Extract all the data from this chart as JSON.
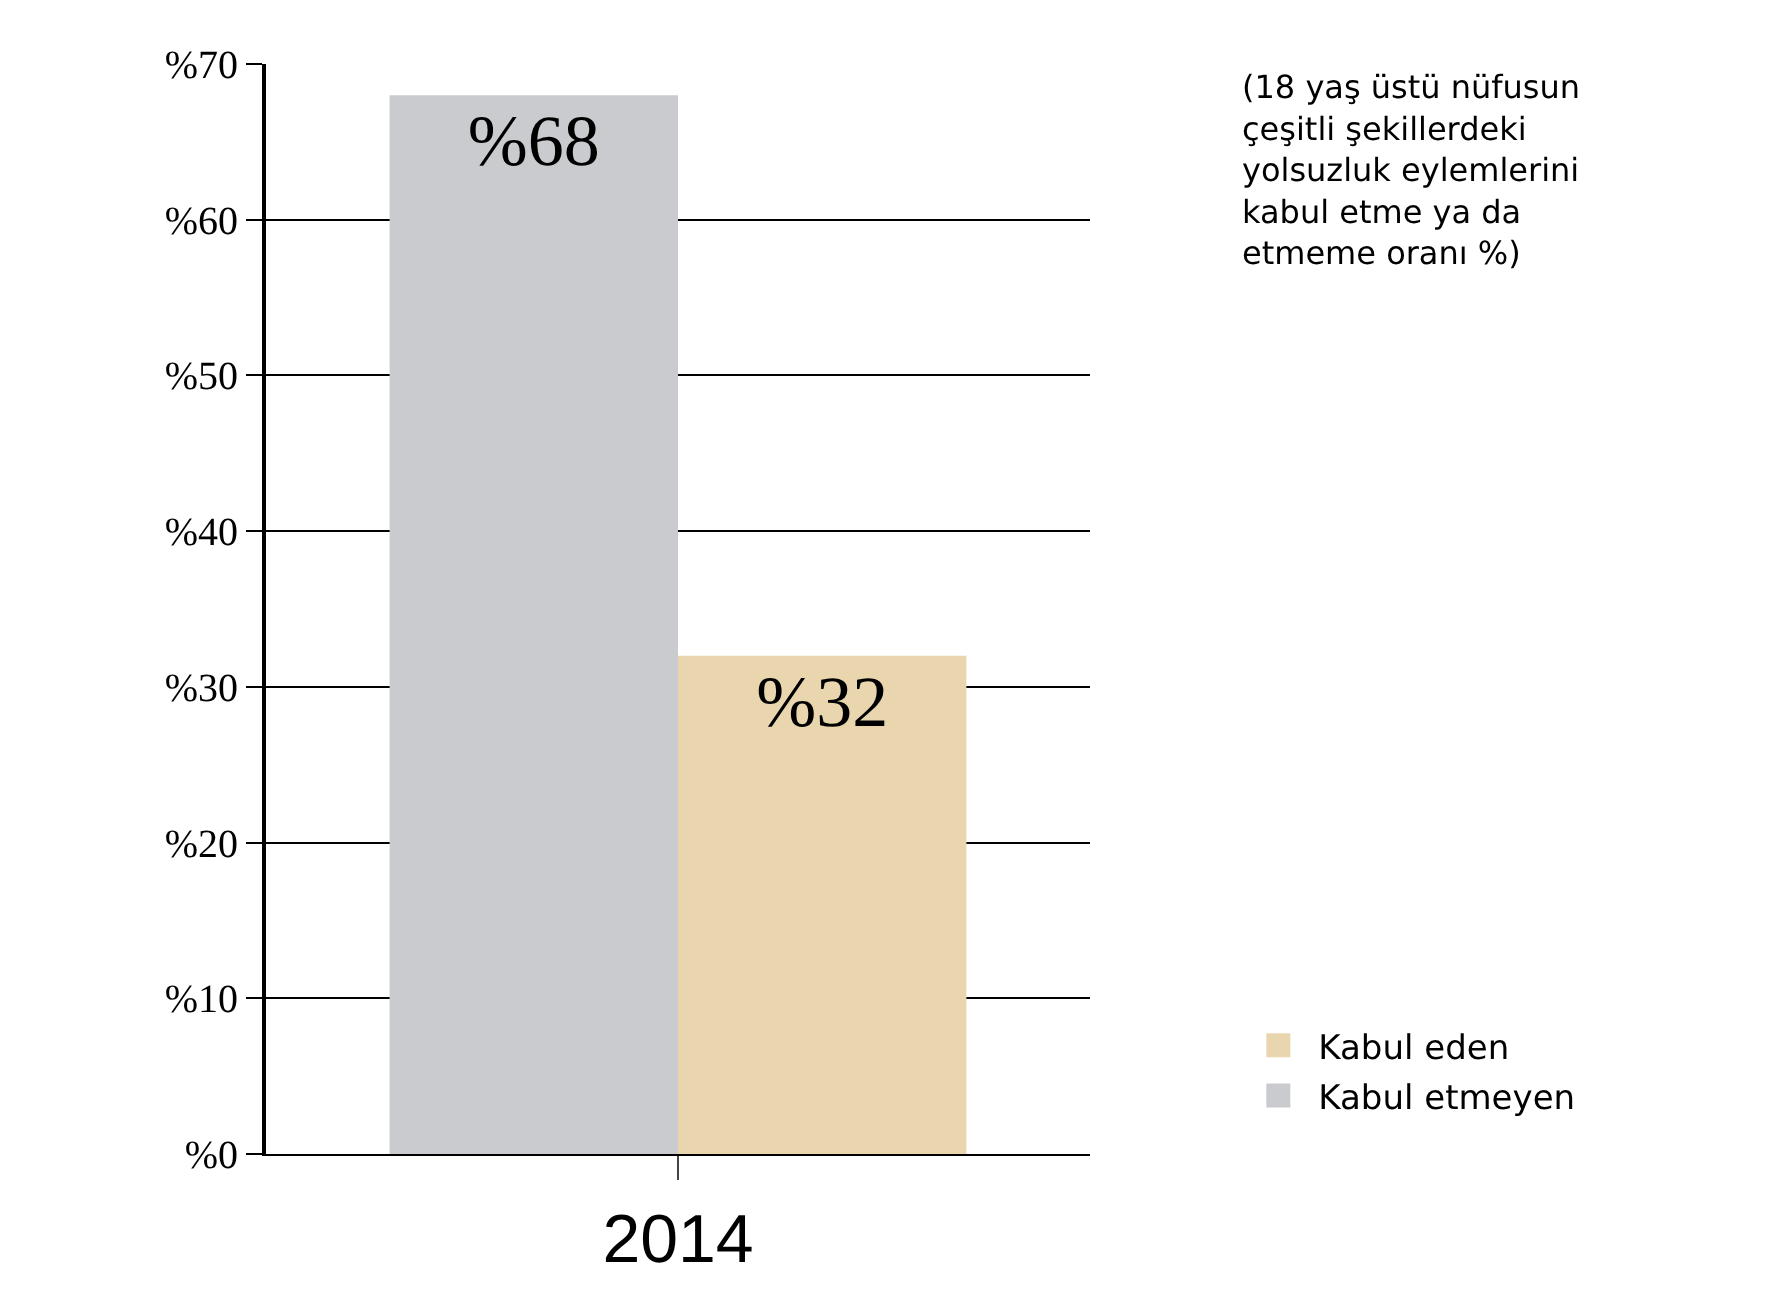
{
  "chart_data": {
    "type": "bar",
    "categories": [
      "2014"
    ],
    "series": [
      {
        "name": "Kabul etmeyen",
        "color": "#c9cbce",
        "values": [
          68
        ],
        "value_labels": [
          "%68"
        ]
      },
      {
        "name": "Kabul eden",
        "color": "#e9d6ae",
        "values": [
          32
        ],
        "value_labels": [
          "%32"
        ]
      }
    ],
    "ylim": [
      0,
      70
    ],
    "yticks": [
      {
        "value": 0,
        "label": "%0"
      },
      {
        "value": 10,
        "label": "%10"
      },
      {
        "value": 20,
        "label": "%20"
      },
      {
        "value": 30,
        "label": "%30"
      },
      {
        "value": 40,
        "label": "%40"
      },
      {
        "value": 50,
        "label": "%50"
      },
      {
        "value": 60,
        "label": "%60"
      },
      {
        "value": 70,
        "label": "%70"
      }
    ],
    "grid": "y",
    "legend": "bottom right",
    "annotations": [
      "(18 yaş üstü nüfusun çeşitli şekillerdeki yolsuzluk eylemlerini kabul etme ya da etmeme oranı %)"
    ]
  }
}
